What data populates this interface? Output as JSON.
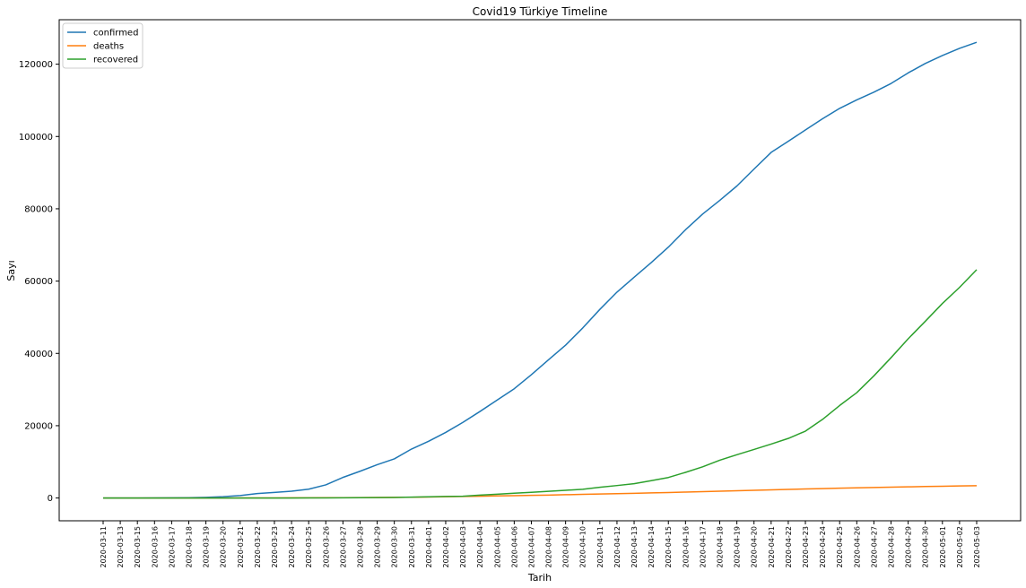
{
  "chart_data": {
    "type": "line",
    "title": "Covid19 Türkiye Timeline",
    "xlabel": "Tarih",
    "ylabel": "Sayı",
    "ylim": [
      -6300,
      132300
    ],
    "yticks": [
      0,
      20000,
      40000,
      60000,
      80000,
      100000,
      120000
    ],
    "grid": false,
    "legend_position": "top-left",
    "x": [
      "2020-03-11",
      "2020-03-13",
      "2020-03-15",
      "2020-03-16",
      "2020-03-17",
      "2020-03-18",
      "2020-03-19",
      "2020-03-20",
      "2020-03-21",
      "2020-03-22",
      "2020-03-23",
      "2020-03-24",
      "2020-03-25",
      "2020-03-26",
      "2020-03-27",
      "2020-03-28",
      "2020-03-29",
      "2020-03-30",
      "2020-03-31",
      "2020-04-01",
      "2020-04-02",
      "2020-04-03",
      "2020-04-04",
      "2020-04-05",
      "2020-04-06",
      "2020-04-07",
      "2020-04-08",
      "2020-04-09",
      "2020-04-10",
      "2020-04-11",
      "2020-04-12",
      "2020-04-13",
      "2020-04-14",
      "2020-04-15",
      "2020-04-16",
      "2020-04-17",
      "2020-04-18",
      "2020-04-19",
      "2020-04-20",
      "2020-04-21",
      "2020-04-22",
      "2020-04-23",
      "2020-04-24",
      "2020-04-25",
      "2020-04-26",
      "2020-04-27",
      "2020-04-28",
      "2020-04-29",
      "2020-04-30",
      "2020-05-01",
      "2020-05-02",
      "2020-05-03"
    ],
    "series": [
      {
        "name": "confirmed",
        "color": "#1f77b4",
        "values": [
          1,
          5,
          6,
          18,
          47,
          98,
          191,
          359,
          670,
          1236,
          1529,
          1872,
          2433,
          3629,
          5698,
          7402,
          9217,
          10827,
          13531,
          15679,
          18135,
          20921,
          23934,
          27069,
          30217,
          34109,
          38226,
          42282,
          47029,
          52167,
          56956,
          61049,
          65111,
          69392,
          74193,
          78546,
          82329,
          86306,
          90980,
          95591,
          98674,
          101790,
          104912,
          107773,
          110130,
          112261,
          114653,
          117589,
          120204,
          122392,
          124375,
          126045
        ]
      },
      {
        "name": "deaths",
        "color": "#ff7f0e",
        "values": [
          0,
          0,
          0,
          0,
          1,
          1,
          2,
          4,
          9,
          30,
          37,
          44,
          59,
          75,
          92,
          108,
          131,
          168,
          214,
          277,
          356,
          425,
          501,
          574,
          649,
          725,
          812,
          908,
          1006,
          1101,
          1198,
          1296,
          1403,
          1518,
          1643,
          1769,
          1890,
          2017,
          2140,
          2259,
          2376,
          2491,
          2600,
          2706,
          2805,
          2900,
          2992,
          3081,
          3174,
          3258,
          3336,
          3397
        ]
      },
      {
        "name": "recovered",
        "color": "#2ca02c",
        "values": [
          0,
          0,
          0,
          0,
          0,
          0,
          0,
          0,
          0,
          0,
          0,
          0,
          26,
          26,
          42,
          70,
          105,
          162,
          243,
          333,
          415,
          484,
          786,
          1042,
          1326,
          1582,
          1846,
          2142,
          2423,
          2965,
          3446,
          3957,
          4799,
          5674,
          7089,
          8631,
          10453,
          11976,
          13430,
          14918,
          16477,
          18491,
          21737,
          25582,
          29140,
          33791,
          38809,
          44040,
          48886,
          53808,
          58259,
          63151
        ]
      }
    ]
  }
}
